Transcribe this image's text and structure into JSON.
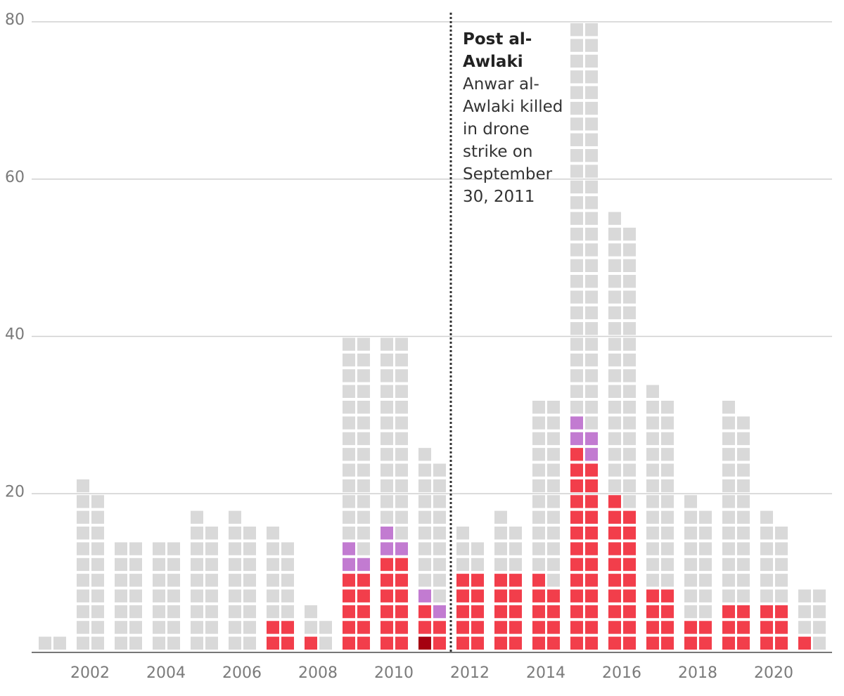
{
  "chart_data": {
    "type": "waffle",
    "categories": [
      null,
      "2002",
      null,
      "2004",
      null,
      "2006",
      null,
      "2008",
      null,
      "2010",
      null,
      "2012",
      null,
      "2014",
      null,
      "2016",
      null,
      "2018",
      null,
      "2020",
      null
    ],
    "series": [
      {
        "color": "#a50010",
        "values": [
          0,
          0,
          0,
          0,
          0,
          0,
          0,
          0,
          0,
          0,
          1,
          0,
          0,
          0,
          0,
          0,
          0,
          0,
          0,
          0,
          0
        ]
      },
      {
        "color": "#f23e4b",
        "values": [
          0,
          0,
          0,
          0,
          0,
          0,
          4,
          1,
          10,
          12,
          4,
          10,
          10,
          9,
          25,
          19,
          8,
          4,
          6,
          6,
          1
        ]
      },
      {
        "color": "#c27bd1",
        "values": [
          0,
          0,
          0,
          0,
          0,
          0,
          0,
          0,
          3,
          3,
          2,
          0,
          0,
          0,
          4,
          0,
          0,
          0,
          0,
          0,
          0
        ]
      },
      {
        "color": "#d9d9d9",
        "values": [
          2,
          21,
          14,
          14,
          17,
          17,
          11,
          4,
          27,
          25,
          18,
          5,
          7,
          23,
          51,
          36,
          25,
          15,
          25,
          11,
          7
        ]
      }
    ],
    "ylim": [
      0,
      80
    ],
    "yticks": [
      20,
      40,
      60,
      80
    ],
    "grid": true,
    "annotation": {
      "title": "Post al-Awlaki",
      "text": "Anwar al-Awlaki killed in drone strike on September 30, 2011"
    }
  }
}
